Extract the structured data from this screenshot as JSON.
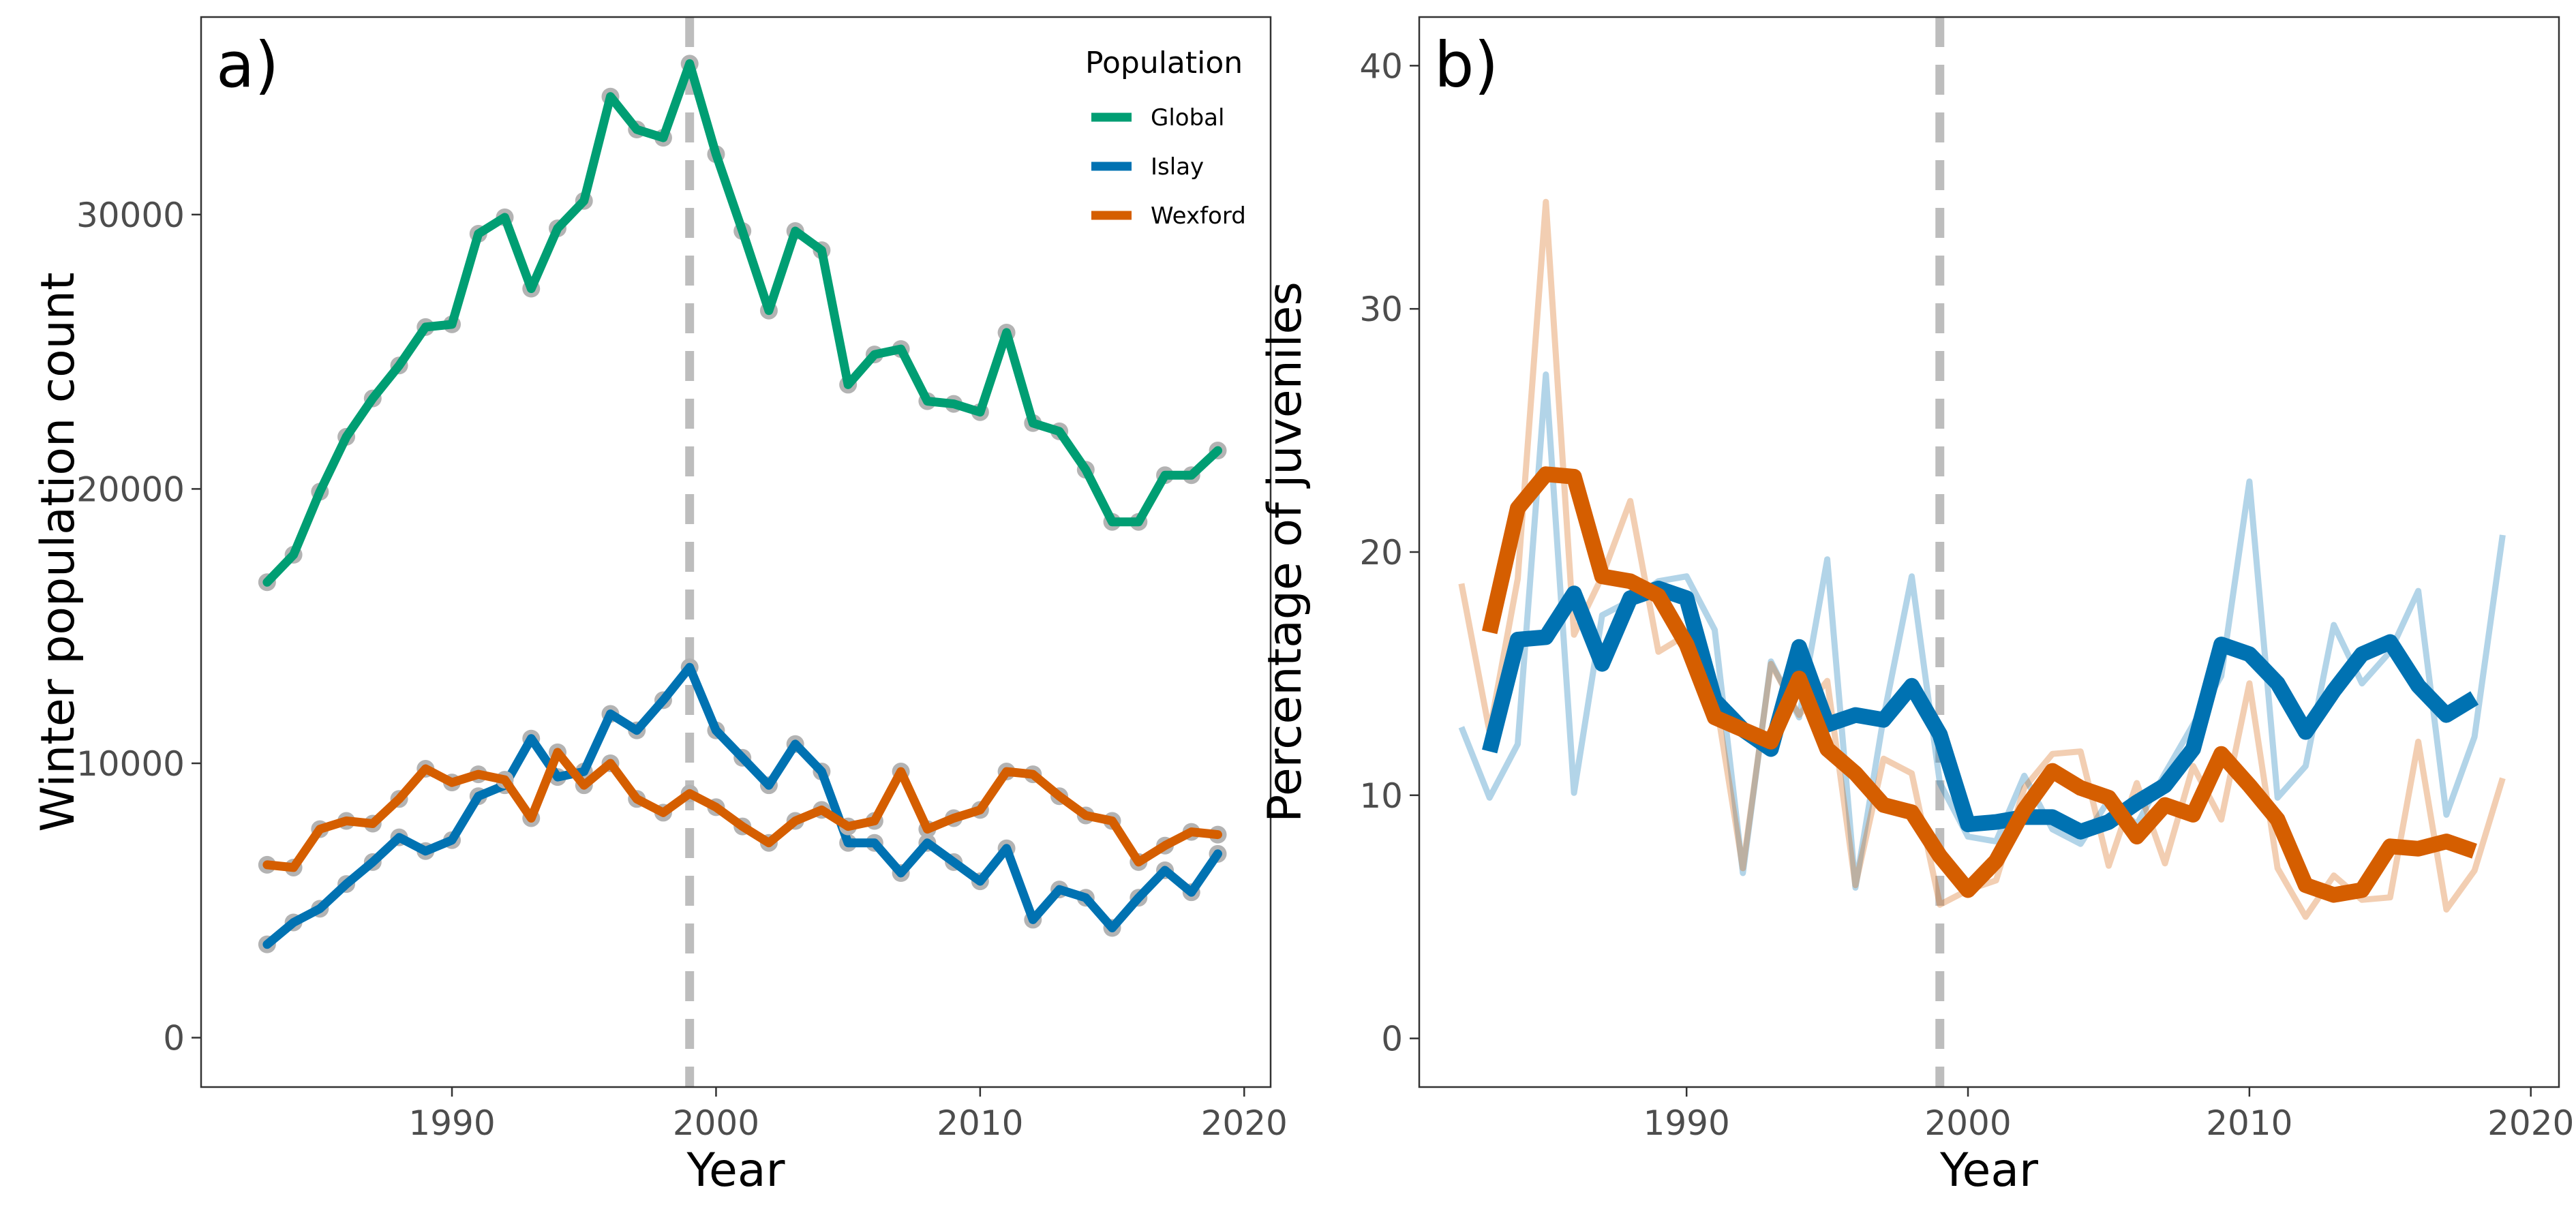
{
  "colors": {
    "Global": "#009E73",
    "Islay": "#0072B2",
    "Wexford": "#D55E00",
    "marker": "#b3b3b3",
    "vline": "#bdbdbd"
  },
  "chart_data": [
    {
      "panel_tag": "a)",
      "type": "line",
      "xlabel": "Year",
      "ylabel": "Winter population count",
      "xlim": [
        1980.5,
        2021
      ],
      "ylim": [
        -1800,
        37200
      ],
      "xticks": [
        1990,
        2000,
        2010,
        2020
      ],
      "xtick_labels": [
        "1990",
        "2000",
        "2010",
        "2020"
      ],
      "yticks": [
        0,
        10000,
        20000,
        30000
      ],
      "ytick_labels": [
        "0",
        "10000",
        "20000",
        "30000"
      ],
      "vline": 1999,
      "grid": false,
      "legend": {
        "title": "Population",
        "position": "top-right",
        "entries": [
          "Global",
          "Islay",
          "Wexford"
        ]
      },
      "x": [
        1983,
        1984,
        1985,
        1986,
        1987,
        1988,
        1989,
        1990,
        1991,
        1992,
        1993,
        1994,
        1995,
        1996,
        1997,
        1998,
        1999,
        2000,
        2001,
        2002,
        2003,
        2004,
        2005,
        2006,
        2007,
        2008,
        2009,
        2010,
        2011,
        2012,
        2013,
        2014,
        2015,
        2016,
        2017,
        2018,
        2019
      ],
      "series": [
        {
          "name": "Global",
          "values": [
            16600,
            17600,
            19900,
            21900,
            23300,
            24500,
            25900,
            26000,
            29300,
            29900,
            27300,
            29500,
            30500,
            34300,
            33100,
            32800,
            35500,
            32200,
            29400,
            26500,
            29400,
            28700,
            23800,
            24900,
            25100,
            23200,
            23100,
            22800,
            25700,
            22400,
            22100,
            20700,
            18800,
            18800,
            20500,
            20500,
            21400
          ]
        },
        {
          "name": "Islay",
          "values": [
            3400,
            4200,
            4700,
            5600,
            6400,
            7300,
            6800,
            7200,
            8800,
            9200,
            10900,
            9500,
            9700,
            11800,
            11200,
            12300,
            13500,
            11200,
            10200,
            9200,
            10700,
            9700,
            7100,
            7100,
            6000,
            7100,
            6400,
            5700,
            6900,
            4300,
            5400,
            5100,
            4000,
            5100,
            6100,
            5300,
            6700
          ]
        },
        {
          "name": "Wexford",
          "values": [
            6300,
            6200,
            7600,
            7900,
            7800,
            8700,
            9800,
            9300,
            9600,
            9400,
            8000,
            10400,
            9200,
            10000,
            8700,
            8200,
            8900,
            8400,
            7700,
            7100,
            7900,
            8300,
            7700,
            7900,
            9700,
            7600,
            8000,
            8300,
            9700,
            9600,
            8800,
            8100,
            7900,
            6400,
            7000,
            7500,
            7400
          ]
        }
      ]
    },
    {
      "panel_tag": "b)",
      "type": "line",
      "xlabel": "Year",
      "ylabel": "Percentage of juveniles",
      "xlim": [
        1980.5,
        2021
      ],
      "ylim": [
        -2,
        42
      ],
      "xticks": [
        1990,
        2000,
        2010,
        2020
      ],
      "xtick_labels": [
        "1990",
        "2000",
        "2010",
        "2020"
      ],
      "yticks": [
        0,
        10,
        20,
        30,
        40
      ],
      "ytick_labels": [
        "0",
        "10",
        "20",
        "30",
        "40"
      ],
      "vline": 1999,
      "grid": false,
      "x_raw": [
        1982,
        1983,
        1984,
        1985,
        1986,
        1987,
        1988,
        1989,
        1990,
        1991,
        1992,
        1993,
        1994,
        1995,
        1996,
        1997,
        1998,
        1999,
        2000,
        2001,
        2002,
        2003,
        2004,
        2005,
        2006,
        2007,
        2008,
        2009,
        2010,
        2011,
        2012,
        2013,
        2014,
        2015,
        2016,
        2017,
        2018,
        2019
      ],
      "x_smooth": [
        1983,
        1984,
        1985,
        1986,
        1987,
        1988,
        1989,
        1990,
        1991,
        1992,
        1993,
        1994,
        1995,
        1996,
        1997,
        1998,
        1999,
        2000,
        2001,
        2002,
        2003,
        2004,
        2005,
        2006,
        2007,
        2008,
        2009,
        2010,
        2011,
        2012,
        2013,
        2014,
        2015,
        2016,
        2017,
        2018
      ],
      "series": [
        {
          "name": "Islay",
          "raw": [
            12.8,
            9.9,
            12.1,
            27.3,
            10.1,
            17.4,
            18.0,
            18.8,
            19.0,
            16.8,
            6.8,
            15.5,
            13.2,
            19.7,
            6.2,
            13.2,
            19.0,
            10.5,
            8.3,
            8.1,
            10.8,
            8.6,
            8.0,
            9.8,
            8.8,
            10.9,
            12.9,
            14.9,
            22.9,
            9.9,
            11.2,
            17.0,
            14.6,
            15.9,
            18.4,
            9.2,
            12.4,
            20.7
          ],
          "smooth": [
            11.8,
            16.4,
            16.5,
            18.3,
            15.4,
            18.1,
            18.5,
            18.1,
            13.9,
            12.7,
            11.9,
            16.1,
            12.9,
            13.3,
            13.1,
            14.5,
            12.5,
            8.8,
            8.9,
            9.1,
            9.1,
            8.5,
            8.9,
            9.7,
            10.4,
            11.9,
            16.2,
            15.8,
            14.6,
            12.6,
            14.3,
            15.8,
            16.3,
            14.5,
            13.3,
            14.0
          ]
        },
        {
          "name": "Wexford",
          "raw": [
            18.7,
            12.6,
            18.9,
            34.4,
            16.6,
            19.0,
            22.1,
            15.9,
            16.6,
            14.2,
            7.0,
            15.4,
            13.3,
            14.7,
            6.3,
            11.5,
            10.9,
            5.5,
            6.1,
            6.5,
            10.3,
            11.7,
            11.8,
            7.1,
            10.5,
            7.2,
            11.2,
            9.0,
            14.6,
            7.0,
            5.0,
            6.7,
            5.7,
            5.8,
            12.2,
            5.3,
            6.9,
            10.7
          ],
          "smooth": [
            16.7,
            21.8,
            23.2,
            23.1,
            19.0,
            18.8,
            18.2,
            16.2,
            13.2,
            12.7,
            12.2,
            14.8,
            11.9,
            10.9,
            9.6,
            9.3,
            7.5,
            6.1,
            7.3,
            9.4,
            11.0,
            10.3,
            9.9,
            8.3,
            9.6,
            9.2,
            11.7,
            10.4,
            9.0,
            6.3,
            5.9,
            6.1,
            7.9,
            7.8,
            8.1,
            7.7
          ]
        }
      ]
    }
  ]
}
